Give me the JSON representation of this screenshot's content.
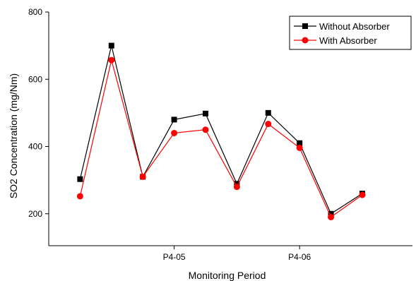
{
  "chart_data": {
    "type": "line",
    "title": "",
    "xlabel": "Monitoring Period",
    "ylabel": "SO2 Concentration (mg/Nm)",
    "x": [
      1,
      2,
      3,
      4,
      5,
      6,
      7,
      8,
      9,
      10
    ],
    "xticks": [
      {
        "x": 4,
        "label": "P4-05"
      },
      {
        "x": 8,
        "label": "P4-06"
      }
    ],
    "yticks": [
      200,
      400,
      600,
      800
    ],
    "ylim": [
      105,
      800
    ],
    "series": [
      {
        "name": "Without Absorber",
        "color": "#000000",
        "marker": "square",
        "values": [
          303,
          700,
          310,
          480,
          498,
          289,
          500,
          410,
          200,
          260
        ]
      },
      {
        "name": "With Absorber",
        "color": "#ff0000",
        "marker": "circle",
        "values": [
          252,
          657,
          310,
          440,
          450,
          280,
          467,
          396,
          190,
          256
        ]
      }
    ],
    "legend_position": "top-right",
    "grid": false
  }
}
